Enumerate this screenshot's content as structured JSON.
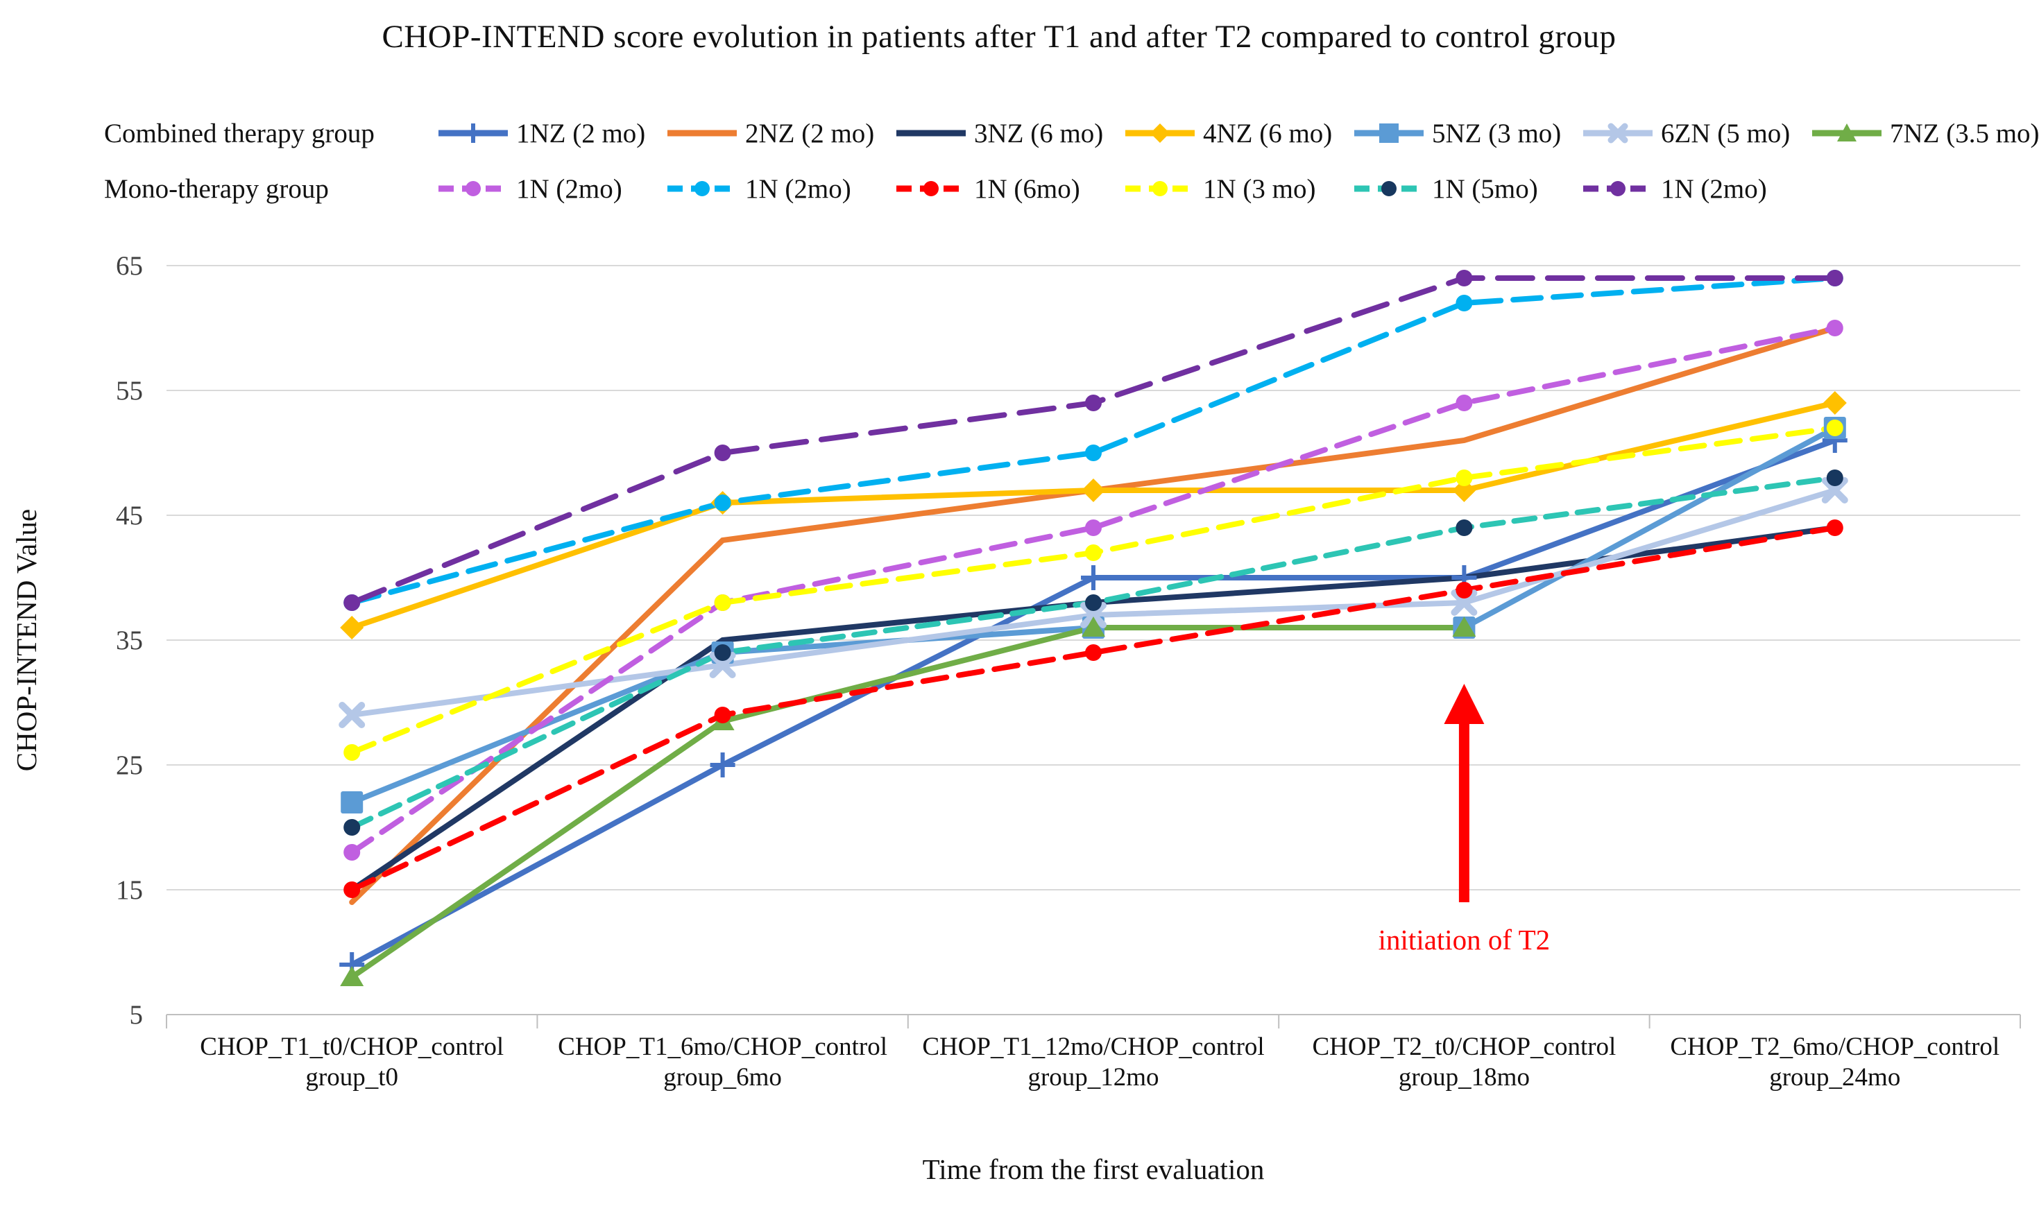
{
  "title": "CHOP-INTEND score evolution in patients after T1 and after T2 compared to control group",
  "legend": {
    "row1_label": "Combined therapy group",
    "row2_label": "Mono-therapy group"
  },
  "chart_data": {
    "type": "line",
    "title": "CHOP-INTEND score evolution in patients after T1 and after T2 compared to control group",
    "xlabel": "Time from the first evaluation",
    "ylabel": "CHOP-INTEND Value",
    "ylim": [
      5,
      65
    ],
    "yticks": [
      5,
      15,
      25,
      35,
      45,
      55,
      65
    ],
    "grid": "horizontal",
    "legend_position": "top",
    "categories": [
      [
        "CHOP_T1_t0/CHOP_control",
        "group_t0"
      ],
      [
        "CHOP_T1_6mo/CHOP_control",
        "group_6mo"
      ],
      [
        "CHOP_T1_12mo/CHOP_control",
        "group_12mo"
      ],
      [
        "CHOP_T2_t0/CHOP_control",
        "group_18mo"
      ],
      [
        "CHOP_T2_6mo/CHOP_control",
        "group_24mo"
      ]
    ],
    "series": [
      {
        "name": "1NZ (2 mo)",
        "group": "combined",
        "color": "#4472C4",
        "marker": "plus",
        "dash": null,
        "values": [
          9,
          25,
          40,
          40,
          51
        ]
      },
      {
        "name": "2NZ (2 mo)",
        "group": "combined",
        "color": "#ED7D31",
        "marker": "none",
        "dash": null,
        "values": [
          14,
          43,
          47,
          51,
          60
        ]
      },
      {
        "name": "3NZ (6 mo)",
        "group": "combined",
        "color": "#203864",
        "marker": "none",
        "dash": null,
        "values": [
          15,
          35,
          38,
          40,
          44
        ]
      },
      {
        "name": "4NZ (6 mo)",
        "group": "combined",
        "color": "#FFC000",
        "marker": "diamond",
        "dash": null,
        "values": [
          36,
          46,
          47,
          47,
          54
        ]
      },
      {
        "name": "5NZ (3 mo)",
        "group": "combined",
        "color": "#5B9BD5",
        "marker": "square",
        "dash": null,
        "values": [
          22,
          34,
          36,
          36,
          52
        ]
      },
      {
        "name": "6ZN (5 mo)",
        "group": "combined",
        "color": "#B4C7E7",
        "marker": "x",
        "dash": null,
        "values": [
          29,
          33,
          37,
          38,
          47
        ]
      },
      {
        "name": "7NZ (3.5 mo)",
        "group": "combined",
        "color": "#70AD47",
        "marker": "triangle",
        "dash": null,
        "values": [
          8,
          28.5,
          36,
          36,
          null
        ]
      },
      {
        "name": "1N (2mo)",
        "group": "mono",
        "color": "#C05FE0",
        "marker": "circle",
        "dash": "34 18",
        "values": [
          18,
          38,
          44,
          54,
          60
        ]
      },
      {
        "name": "1N (2mo)",
        "group": "mono",
        "color": "#00B0F0",
        "marker": "circle",
        "dash": "40 18",
        "values": [
          38,
          46,
          50,
          62,
          64
        ]
      },
      {
        "name": "1N (6mo)",
        "group": "mono",
        "color": "#FF0000",
        "marker": "circle",
        "dash": "34 18",
        "values": [
          15,
          29,
          34,
          39,
          44
        ]
      },
      {
        "name": "1N (3 mo)",
        "group": "mono",
        "color": "#FFFF00",
        "marker": "circle",
        "dash": "34 18",
        "values": [
          26,
          38,
          42,
          48,
          52
        ]
      },
      {
        "name": "1N (5mo)",
        "group": "mono",
        "color": "#2DC5B4",
        "marker": "circle",
        "marker_color": "#17375E",
        "dash": "30 16",
        "values": [
          20,
          34,
          38,
          44,
          48
        ]
      },
      {
        "name": "1N (2mo)",
        "group": "mono",
        "color": "#7030A0",
        "marker": "circle",
        "dash": "50 22",
        "values": [
          38,
          50,
          54,
          64,
          64
        ]
      }
    ],
    "annotation": {
      "text": "initiation of T2",
      "color": "#FF0000",
      "category_index": 3,
      "arrow_from_value": 14.0,
      "arrow_to_value": 31.5
    }
  }
}
